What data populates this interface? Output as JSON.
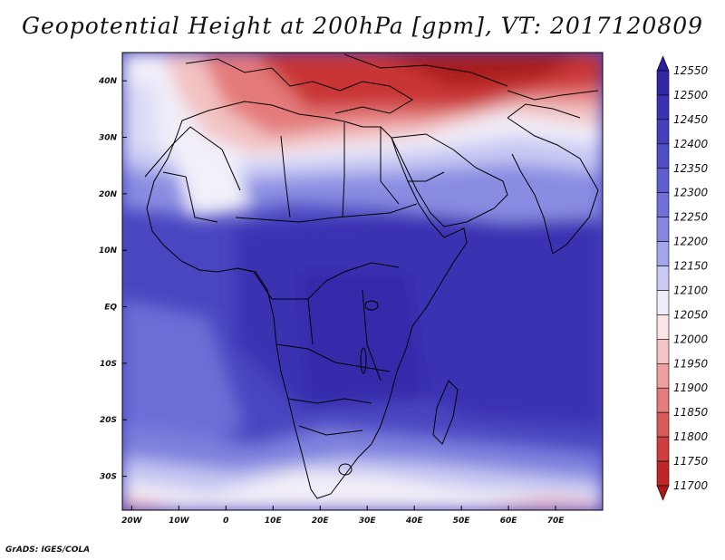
{
  "title": "Geopotential Height at 200hPa [gpm], VT: 2017120809",
  "credit": "GrADS: IGES/COLA",
  "map": {
    "lon_range": [
      -22,
      80
    ],
    "lat_range": [
      -36,
      45
    ],
    "lon_ticks": [
      {
        "v": -20,
        "label": "20W"
      },
      {
        "v": -10,
        "label": "10W"
      },
      {
        "v": 0,
        "label": "0"
      },
      {
        "v": 10,
        "label": "10E"
      },
      {
        "v": 20,
        "label": "20E"
      },
      {
        "v": 30,
        "label": "30E"
      },
      {
        "v": 40,
        "label": "40E"
      },
      {
        "v": 50,
        "label": "50E"
      },
      {
        "v": 60,
        "label": "60E"
      },
      {
        "v": 70,
        "label": "70E"
      }
    ],
    "lat_ticks": [
      {
        "v": 40,
        "label": "40N"
      },
      {
        "v": 30,
        "label": "30N"
      },
      {
        "v": 20,
        "label": "20N"
      },
      {
        "v": 10,
        "label": "10N"
      },
      {
        "v": 0,
        "label": "EQ"
      },
      {
        "v": -10,
        "label": "10S"
      },
      {
        "v": -20,
        "label": "20S"
      },
      {
        "v": -30,
        "label": "30S"
      }
    ]
  },
  "colorbar": {
    "labels": [
      "12550",
      "12500",
      "12450",
      "12400",
      "12350",
      "12300",
      "12250",
      "12200",
      "12150",
      "12100",
      "12050",
      "12000",
      "11950",
      "11900",
      "11850",
      "11800",
      "11750",
      "11700"
    ],
    "colors": [
      "#2a1f9a",
      "#3126a6",
      "#3a32b2",
      "#4440bd",
      "#504ec6",
      "#5e5ed0",
      "#6f70d8",
      "#8486e0",
      "#a3a6ea",
      "#c9cbf4",
      "#eeeefb",
      "#fbe6e6",
      "#f5c3c3",
      "#eea0a0",
      "#e57c7c",
      "#dc5a5a",
      "#cf3d3d",
      "#bf2727",
      "#a71818"
    ]
  }
}
